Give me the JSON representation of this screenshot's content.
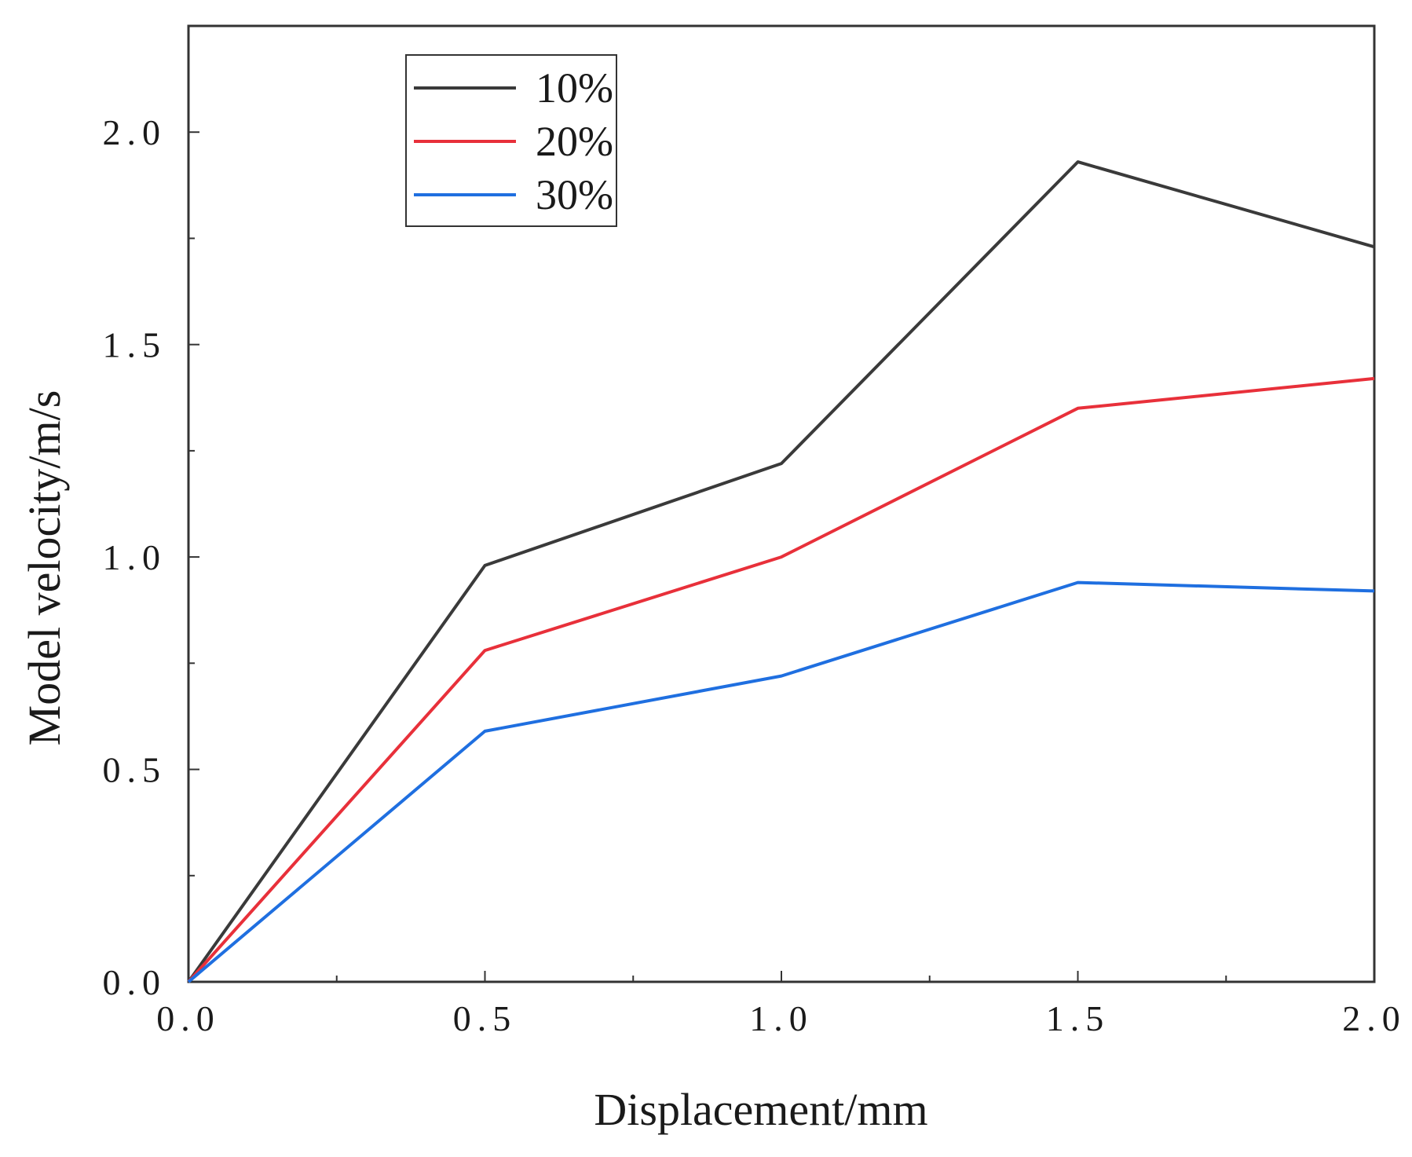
{
  "chart_data": {
    "type": "line",
    "title": "",
    "xlabel": "Displacement/mm",
    "ylabel": "Model velocity/m/s",
    "xlim": [
      0,
      2.0
    ],
    "ylim": [
      0,
      2.25
    ],
    "x": [
      0,
      0.5,
      1.0,
      1.5,
      2.0
    ],
    "x_major_ticks": [
      0,
      0.5,
      1.0,
      1.5,
      2.0
    ],
    "x_minor_ticks": [
      0.25,
      0.75,
      1.25,
      1.75
    ],
    "y_major_ticks": [
      0,
      0.5,
      1.0,
      1.5,
      2.0
    ],
    "y_minor_ticks": [
      0.25,
      0.75,
      1.25,
      1.75
    ],
    "x_tick_labels": [
      "0.0",
      "0.5",
      "1.0",
      "1.5",
      "2.0"
    ],
    "y_tick_labels": [
      "0.0",
      "0.5",
      "1.0",
      "1.5",
      "2.0"
    ],
    "grid": false,
    "legend_position": "top-left",
    "series": [
      {
        "name": "10%",
        "color": "#3a3a3a",
        "values": [
          0,
          0.98,
          1.22,
          1.93,
          1.73
        ]
      },
      {
        "name": "20%",
        "color": "#e8303a",
        "values": [
          0,
          0.78,
          1.0,
          1.35,
          1.42
        ]
      },
      {
        "name": "30%",
        "color": "#1f6fe0",
        "values": [
          0,
          0.59,
          0.72,
          0.94,
          0.92
        ]
      }
    ]
  }
}
